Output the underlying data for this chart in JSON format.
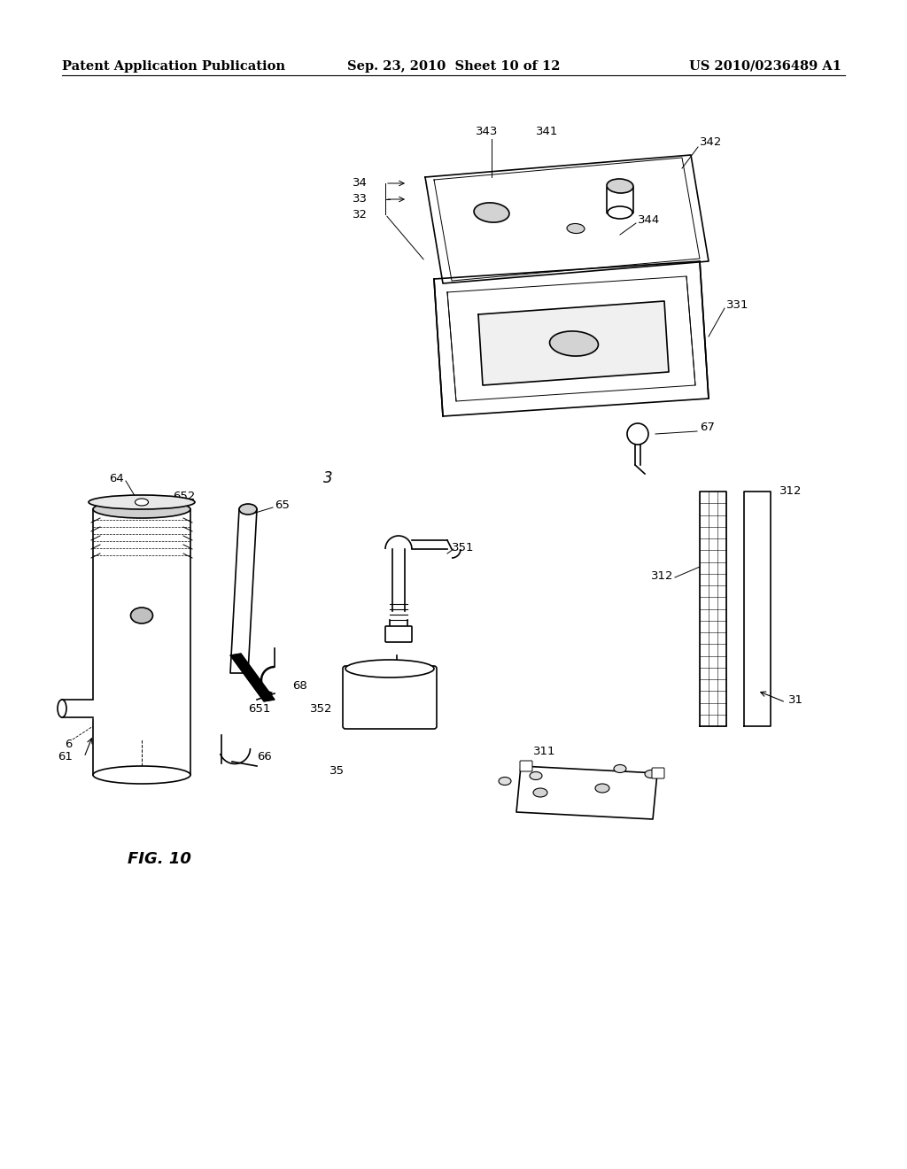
{
  "background_color": "#ffffff",
  "header_left": "Patent Application Publication",
  "header_center": "Sep. 23, 2010  Sheet 10 of 12",
  "header_right": "US 2010/0236489 A1",
  "figure_label": "FIG. 10",
  "title_fontsize": 11,
  "header_fontsize": 10.5,
  "label_fontsize": 10
}
